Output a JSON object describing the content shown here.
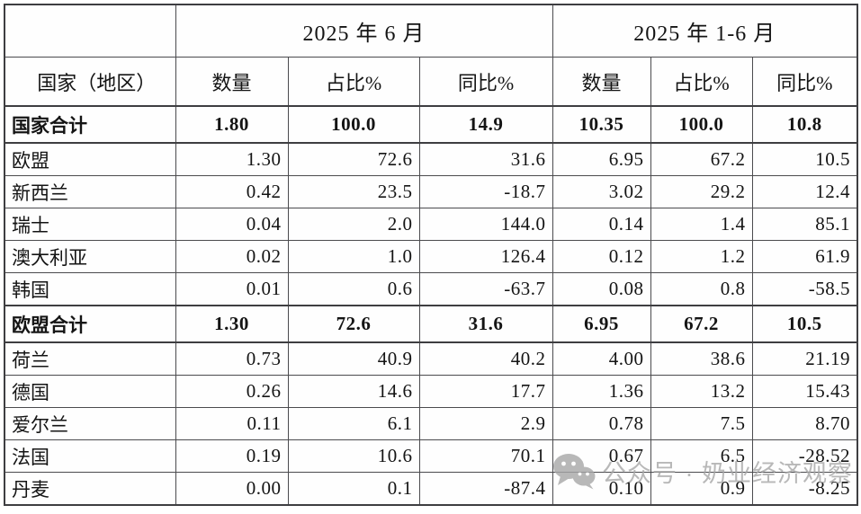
{
  "table": {
    "period_headers": [
      {
        "label": "2025 年 6 月"
      },
      {
        "label": "2025 年 1-6 月"
      }
    ],
    "corner_label": "国家（地区）",
    "column_headers": [
      "数量",
      "占比%",
      "同比%",
      "数量",
      "占比%",
      "同比%"
    ],
    "rows": [
      {
        "label": "国家合计",
        "bold": true,
        "values": [
          "1.80",
          "100.0",
          "14.9",
          "10.35",
          "100.0",
          "10.8"
        ]
      },
      {
        "label": "欧盟",
        "bold": false,
        "values": [
          "1.30",
          "72.6",
          "31.6",
          "6.95",
          "67.2",
          "10.5"
        ]
      },
      {
        "label": "新西兰",
        "bold": false,
        "values": [
          "0.42",
          "23.5",
          "-18.7",
          "3.02",
          "29.2",
          "12.4"
        ]
      },
      {
        "label": "瑞士",
        "bold": false,
        "values": [
          "0.04",
          "2.0",
          "144.0",
          "0.14",
          "1.4",
          "85.1"
        ]
      },
      {
        "label": "澳大利亚",
        "bold": false,
        "values": [
          "0.02",
          "1.0",
          "126.4",
          "0.12",
          "1.2",
          "61.9"
        ]
      },
      {
        "label": "韩国",
        "bold": false,
        "values": [
          "0.01",
          "0.6",
          "-63.7",
          "0.08",
          "0.8",
          "-58.5"
        ]
      },
      {
        "label": "欧盟合计",
        "bold": true,
        "values": [
          "1.30",
          "72.6",
          "31.6",
          "6.95",
          "67.2",
          "10.5"
        ]
      },
      {
        "label": "荷兰",
        "bold": false,
        "values": [
          "0.73",
          "40.9",
          "40.2",
          "4.00",
          "38.6",
          "21.19"
        ]
      },
      {
        "label": "德国",
        "bold": false,
        "values": [
          "0.26",
          "14.6",
          "17.7",
          "1.36",
          "13.2",
          "15.43"
        ]
      },
      {
        "label": "爱尔兰",
        "bold": false,
        "values": [
          "0.11",
          "6.1",
          "2.9",
          "0.78",
          "7.5",
          "8.70"
        ]
      },
      {
        "label": "法国",
        "bold": false,
        "values": [
          "0.19",
          "10.6",
          "70.1",
          "0.67",
          "6.5",
          "-28.52"
        ]
      },
      {
        "label": "丹麦",
        "bold": false,
        "values": [
          "0.00",
          "0.1",
          "-87.4",
          "0.10",
          "0.9",
          "-8.25"
        ]
      }
    ]
  },
  "watermark": {
    "text": "公众号 · 奶业经济观察",
    "color": "#a7a7a7"
  },
  "colors": {
    "grid": "#4b4b4e",
    "outer_border": "#3e3e41",
    "text": "#141414",
    "background": "#ffffff"
  }
}
